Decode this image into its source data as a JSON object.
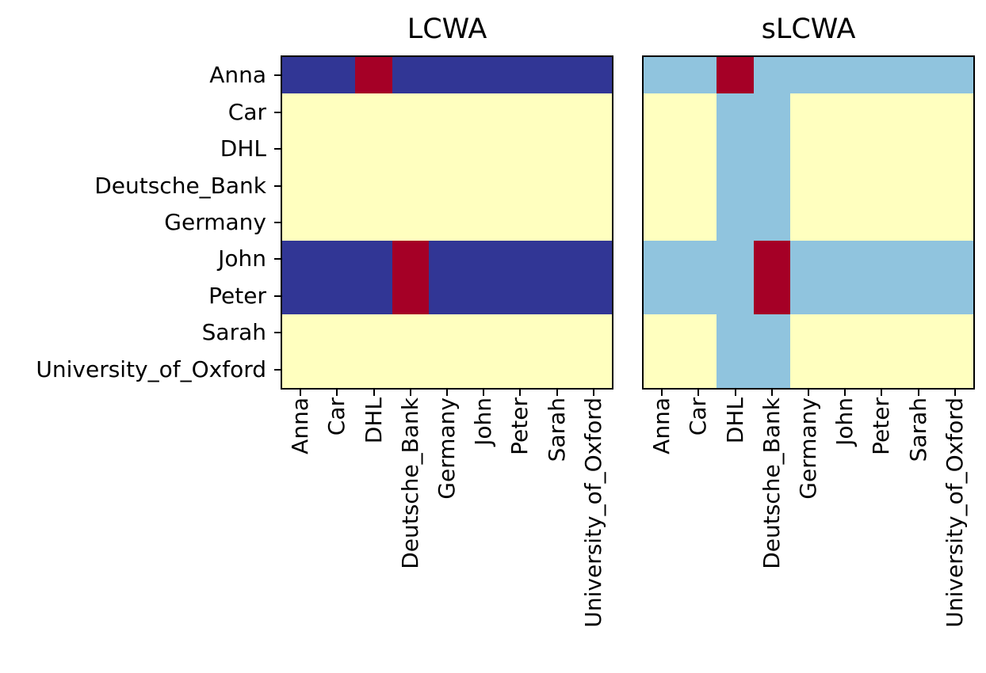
{
  "palette": {
    "R": "#a50026",
    "B": "#313695",
    "L": "#90c4de",
    "Y": "#ffffbf",
    "axis": "#000000",
    "background": "#ffffff"
  },
  "chart_data": [
    {
      "type": "heatmap",
      "title": "LCWA",
      "x_categories": [
        "Anna",
        "Car",
        "DHL",
        "Deutsche_Bank",
        "Germany",
        "John",
        "Peter",
        "Sarah",
        "University_of_Oxford"
      ],
      "y_categories": [
        "Anna",
        "Car",
        "DHL",
        "Deutsche_Bank",
        "Germany",
        "John",
        "Peter",
        "Sarah",
        "University_of_Oxford"
      ],
      "rows": [
        "BBRBBBBBB",
        "YYYYYYYYY",
        "YYYYYYYYY",
        "YYYYYYYYY",
        "YYYYYYYYY",
        "BBBRBBBBB",
        "BBBRBBBBB",
        "YYYYYYYYY",
        "YYYYYYYYY"
      ],
      "cell_colors": {
        "R": "#a50026",
        "B": "#313695",
        "Y": "#ffffbf"
      },
      "x_tick_rotation": 90,
      "show_y_tick_labels": true,
      "grid": false,
      "legend": false
    },
    {
      "type": "heatmap",
      "title": "sLCWA",
      "x_categories": [
        "Anna",
        "Car",
        "DHL",
        "Deutsche_Bank",
        "Germany",
        "John",
        "Peter",
        "Sarah",
        "University_of_Oxford"
      ],
      "y_categories": [
        "Anna",
        "Car",
        "DHL",
        "Deutsche_Bank",
        "Germany",
        "John",
        "Peter",
        "Sarah",
        "University_of_Oxford"
      ],
      "rows": [
        "LLRLLLLLL",
        "YYLLYYYYY",
        "YYLLYYYYY",
        "YYLLYYYYY",
        "YYLLYYYYY",
        "LLLRLLLLL",
        "LLLRLLLLL",
        "YYLLYYYYY",
        "YYLLYYYYY"
      ],
      "cell_colors": {
        "R": "#a50026",
        "L": "#90c4de",
        "Y": "#ffffbf"
      },
      "x_tick_rotation": 90,
      "show_y_tick_labels": false,
      "grid": false,
      "legend": false
    }
  ]
}
